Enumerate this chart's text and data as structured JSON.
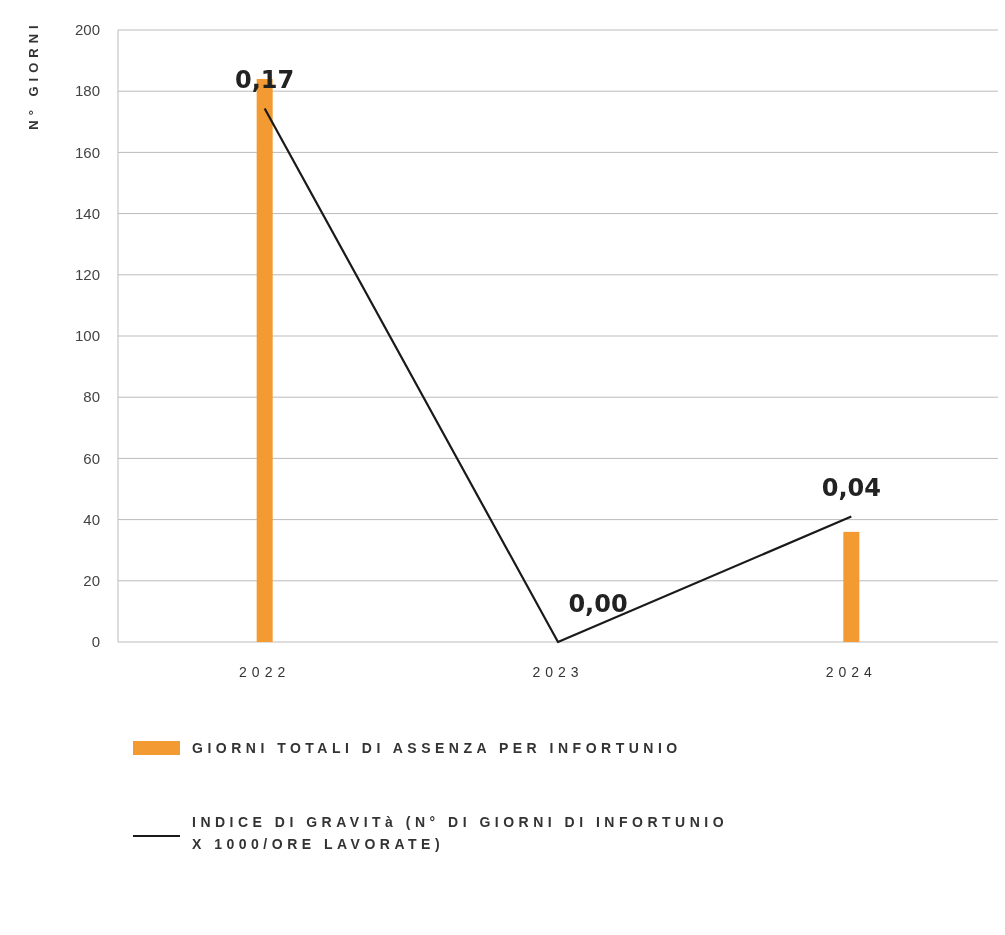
{
  "chart_data": {
    "type": "bar",
    "ylabel": "N° GIORNI",
    "categories": [
      "2022",
      "2023",
      "2024"
    ],
    "series": [
      {
        "name": "GIORNI TOTALI DI ASSENZA PER INFORTUNIO",
        "color": "#f39a32",
        "values": [
          184,
          0,
          36
        ]
      },
      {
        "name": "INDICE DI GRAVITà (N° DI GIORNI DI INFORTUNIO X 1000/ORE LAVORATE)",
        "type": "line",
        "axis": "y2",
        "color": "#1a1a1a",
        "values": [
          0.17,
          0.0,
          0.04
        ],
        "value_labels": [
          "0,17",
          "0,00",
          "0,04"
        ]
      }
    ],
    "ylim": [
      0,
      200
    ],
    "yticks": [
      0,
      20,
      40,
      60,
      80,
      100,
      120,
      140,
      160,
      180,
      200
    ],
    "y2lim": [
      0,
      0.195
    ],
    "grid": "y",
    "legend": "bottom"
  }
}
